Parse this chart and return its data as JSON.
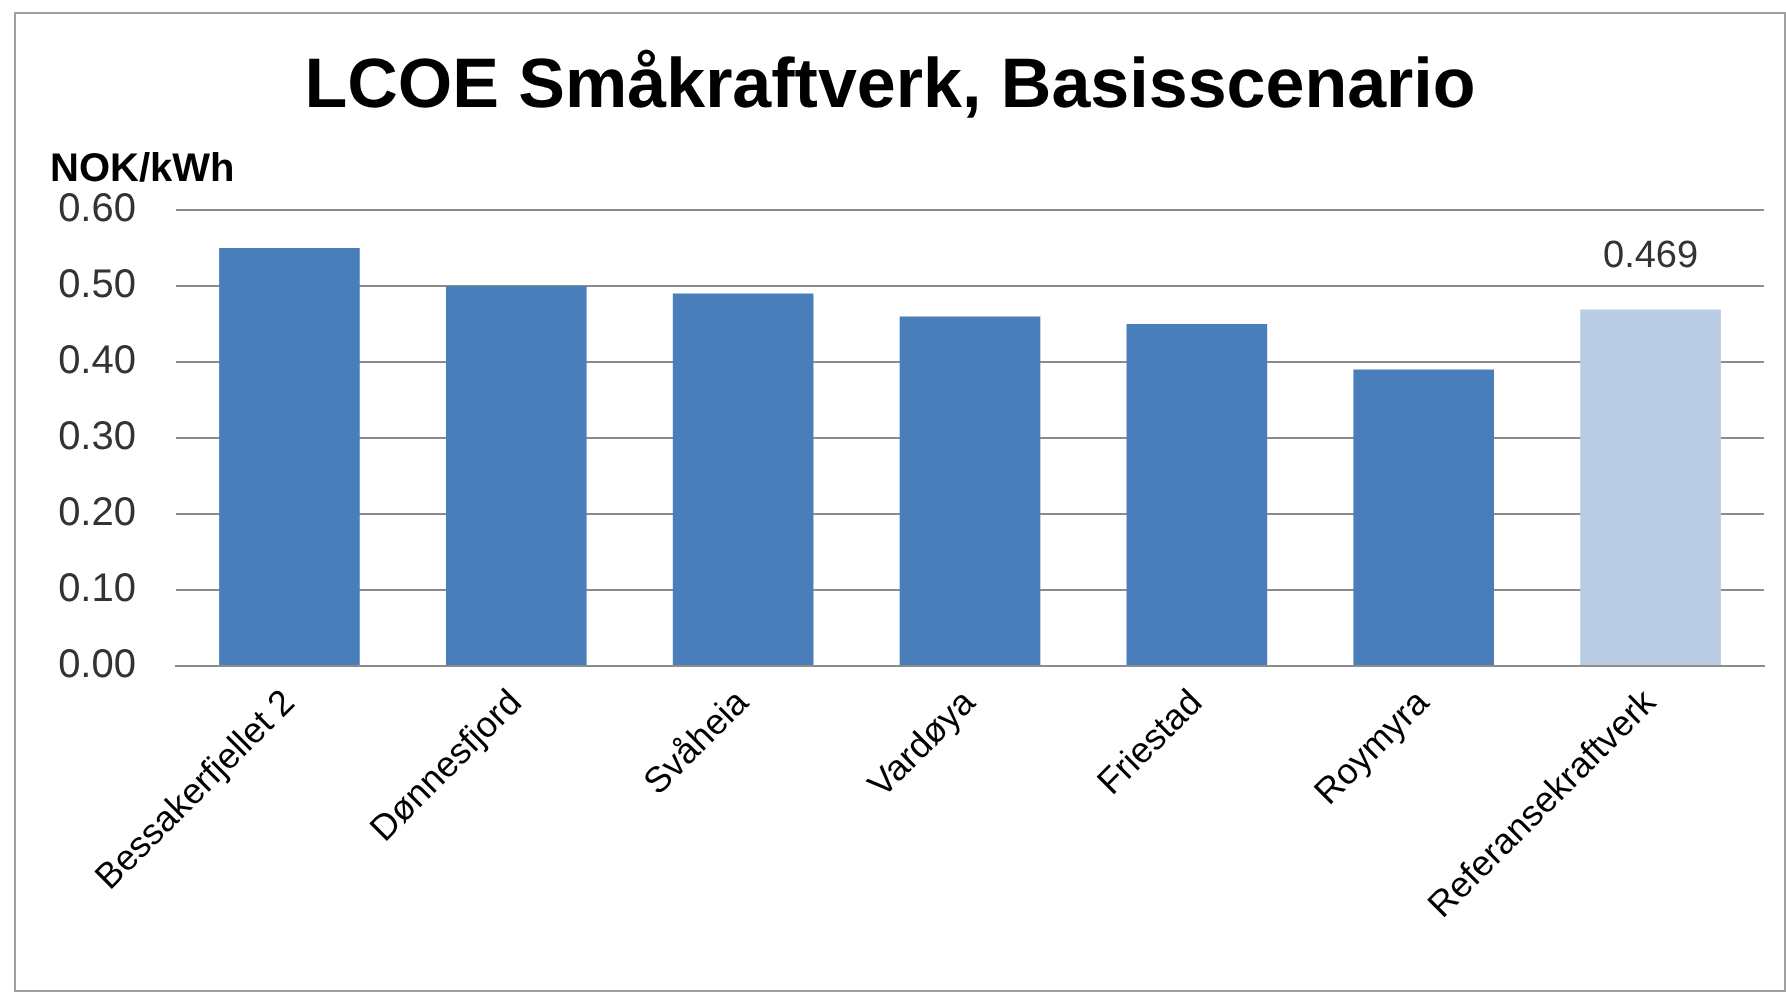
{
  "chart_data": {
    "type": "bar",
    "title": "LCOE Småkraftverk, Basisscenario",
    "ylabel": "NOK/kWh",
    "categories": [
      "Bessakerfjellet 2",
      "Dønnesfjord",
      "Svåheia",
      "Vardøya",
      "Friestad",
      "Roymyra",
      "Referansekraftverk"
    ],
    "values": [
      0.55,
      0.5,
      0.49,
      0.46,
      0.45,
      0.39,
      0.469
    ],
    "colors": [
      "#4a7ebb",
      "#4a7ebb",
      "#4a7ebb",
      "#4a7ebb",
      "#4a7ebb",
      "#4a7ebb",
      "#b9cde5"
    ],
    "value_labels": [
      null,
      null,
      null,
      null,
      null,
      null,
      "0.469"
    ],
    "ylim": [
      0,
      0.6
    ],
    "yticks": [
      {
        "value": 0,
        "label": "0.00"
      },
      {
        "value": 0.1,
        "label": "0.10"
      },
      {
        "value": 0.2,
        "label": "0.20"
      },
      {
        "value": 0.3,
        "label": "0.30"
      },
      {
        "value": 0.4,
        "label": "0.40"
      },
      {
        "value": 0.5,
        "label": "0.50"
      },
      {
        "value": 0.6,
        "label": "0.60"
      }
    ],
    "grid": "y"
  }
}
